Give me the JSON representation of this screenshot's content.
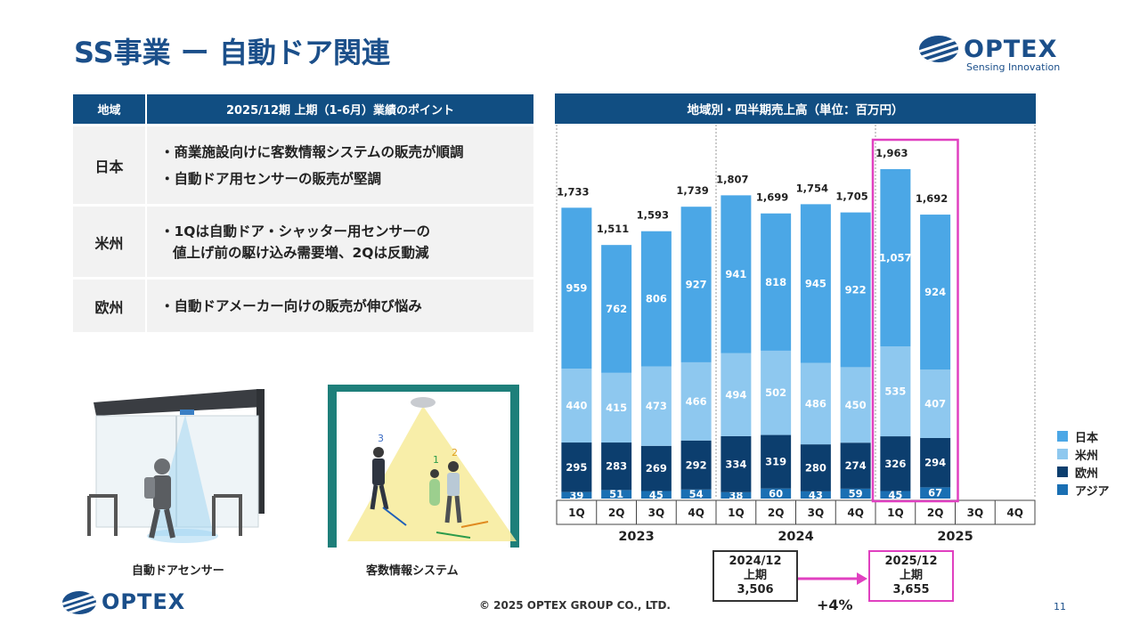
{
  "title": "SS事業 ー 自動ドア関連",
  "brand": {
    "name": "OPTEX",
    "tagline": "Sensing Innovation",
    "color": "#1b4f8a"
  },
  "table": {
    "col_region": "地域",
    "col_points": "2025/12期 上期（1-6月）業績のポイント",
    "rows": [
      {
        "region": "日本",
        "lines": [
          "・商業施設向けに客数情報システムの販売が順調",
          "・自動ドア用センサーの販売が堅調"
        ]
      },
      {
        "region": "米州",
        "lines": [
          "・1Qは自動ドア・シャッター用センサーの",
          "値上げ前の駆け込み需要増、2Qは反動減"
        ]
      },
      {
        "region": "欧州",
        "lines": [
          "・自動ドアメーカー向けの販売が伸び悩み"
        ]
      }
    ]
  },
  "illustrations": {
    "left_caption": "自動ドアセンサー",
    "right_caption": "客数情報システム",
    "person_labels": [
      "3",
      "1",
      "2"
    ]
  },
  "chart_header": "地域別・四半期売上高（単位：百万円）",
  "chart_data": {
    "type": "bar",
    "stacked": true,
    "categories": [
      "1Q",
      "2Q",
      "3Q",
      "4Q",
      "1Q",
      "2Q",
      "3Q",
      "4Q",
      "1Q",
      "2Q",
      "3Q",
      "4Q"
    ],
    "years": [
      {
        "label": "2023",
        "quarters": 4
      },
      {
        "label": "2024",
        "quarters": 4
      },
      {
        "label": "2025",
        "quarters": 4
      }
    ],
    "series": [
      {
        "name": "アジア",
        "color": "#1a6fb3",
        "values": [
          39,
          51,
          45,
          54,
          38,
          60,
          43,
          59,
          45,
          67,
          null,
          null
        ]
      },
      {
        "name": "欧州",
        "color": "#0c3e6e",
        "values": [
          295,
          283,
          269,
          292,
          334,
          319,
          280,
          274,
          326,
          294,
          null,
          null
        ]
      },
      {
        "name": "米州",
        "color": "#8ec8ef",
        "values": [
          440,
          415,
          473,
          466,
          494,
          502,
          486,
          450,
          535,
          407,
          null,
          null
        ]
      },
      {
        "name": "日本",
        "color": "#4ba7e6",
        "values": [
          959,
          762,
          806,
          927,
          941,
          818,
          945,
          922,
          1057,
          924,
          null,
          null
        ]
      }
    ],
    "totals": [
      "1,733",
      "1,511",
      "1,593",
      "1,739",
      "1,807",
      "1,699",
      "1,754",
      "1,705",
      "1,963",
      "1,692",
      "",
      ""
    ],
    "legend_order": [
      "日本",
      "米州",
      "欧州",
      "アジア"
    ],
    "legend_placement": "right",
    "ylim": [
      0,
      2000
    ],
    "highlight": {
      "quarters": [
        "1Q",
        "2Q"
      ],
      "year": "2025",
      "color": "#e040c0"
    }
  },
  "comparison": {
    "prev": {
      "period": "2024/12",
      "label": "上期",
      "value": "3,506"
    },
    "curr": {
      "period": "2025/12",
      "label": "上期",
      "value": "3,655"
    },
    "growth": "+4%",
    "arrow_color": "#e040c0"
  },
  "footer": "© 2025 OPTEX GROUP CO., LTD.",
  "page_number": "11"
}
